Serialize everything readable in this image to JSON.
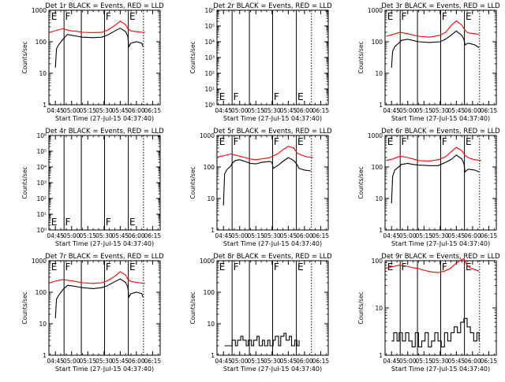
{
  "page": {
    "background": "#ffffff"
  },
  "colors": {
    "events": "#000000",
    "lld": "#ff0000",
    "axis": "#000000"
  },
  "grid_layout": {
    "rows": 3,
    "cols": 3
  },
  "x_axis": {
    "ticks": [
      "04:45",
      "05:00",
      "05:15",
      "05:30",
      "05:45",
      "06:00",
      "06:15"
    ],
    "tick_minutes": [
      285,
      300,
      315,
      330,
      345,
      360,
      375
    ],
    "xlim_minutes": [
      279,
      382
    ],
    "label": "Start Time (27-Jul-15 04:37:40)"
  },
  "y_axis": {
    "label": "Counts/sec"
  },
  "common": {
    "solid_vlines_minutes": [
      293,
      309,
      330.5,
      352.5
    ],
    "dotted_vlines_minutes": [
      366.5
    ],
    "letters": [
      {
        "text": "E",
        "at_minutes": 281,
        "row": "top"
      },
      {
        "text": "F",
        "at_minutes": 294,
        "row": "top"
      },
      {
        "text": "F",
        "at_minutes": 331.5,
        "row": "top"
      },
      {
        "text": "E",
        "at_minutes": 353.5,
        "row": "top"
      }
    ]
  },
  "chart_data": [
    {
      "type": "line",
      "title": "Det 1r BLACK = Events, RED = LLD",
      "yscale": "log",
      "ylim": [
        1,
        1000
      ],
      "yticks": [
        "1",
        "10",
        "100",
        "1000"
      ],
      "xlabel": "Start Time (27-Jul-15 04:37:40)",
      "ylabel": "Counts/sec",
      "series": [
        {
          "name": "RED = LLD",
          "color": "#ff0000",
          "x": [
            280,
            286,
            292,
            295,
            300,
            305,
            310,
            320,
            328,
            333,
            340,
            345,
            350,
            352,
            355,
            360,
            365,
            368
          ],
          "y": [
            200,
            230,
            260,
            240,
            220,
            215,
            200,
            195,
            200,
            230,
            330,
            450,
            350,
            260,
            220,
            210,
            200,
            200
          ]
        },
        {
          "name": "BLACK = Events",
          "color": "#000000",
          "x": [
            285,
            286,
            288,
            292,
            293,
            296,
            300,
            305,
            310,
            320,
            328,
            333,
            340,
            345,
            350,
            352,
            353,
            355,
            360,
            365,
            366
          ],
          "y": [
            15,
            60,
            80,
            120,
            130,
            170,
            160,
            150,
            140,
            135,
            140,
            160,
            220,
            270,
            210,
            150,
            70,
            90,
            100,
            90,
            70
          ]
        }
      ]
    },
    {
      "type": "line",
      "title": "Det 2r BLACK = Events, RED = LLD",
      "yscale": "log",
      "ylim": [
        1,
        1000000
      ],
      "yticks": [
        "10⁰",
        "10¹",
        "10²",
        "10³",
        "10⁴",
        "10⁵",
        "10⁶"
      ],
      "xlabel": "Start Time (27-Jul-15 04:37:40)",
      "ylabel": "Counts/sec",
      "series": [],
      "letters_row": "bottom"
    },
    {
      "type": "line",
      "title": "Det 3r BLACK = Events, RED = LLD",
      "yscale": "log",
      "ylim": [
        1,
        1000
      ],
      "yticks": [
        "1",
        "10",
        "100",
        "1000"
      ],
      "xlabel": "Start Time (27-Jul-15 04:37:40)",
      "ylabel": "Counts/sec",
      "series": [
        {
          "name": "RED = LLD",
          "color": "#ff0000",
          "x": [
            280,
            286,
            293,
            300,
            310,
            320,
            330,
            335,
            340,
            345,
            350,
            353,
            356,
            362,
            366
          ],
          "y": [
            150,
            170,
            200,
            180,
            150,
            140,
            160,
            200,
            320,
            460,
            340,
            230,
            190,
            180,
            170
          ]
        },
        {
          "name": "BLACK = Events",
          "color": "#000000",
          "x": [
            285,
            286,
            288,
            293,
            294,
            300,
            310,
            320,
            330,
            335,
            340,
            345,
            350,
            352,
            353,
            356,
            362,
            366
          ],
          "y": [
            15,
            50,
            70,
            100,
            110,
            120,
            100,
            95,
            100,
            120,
            160,
            220,
            160,
            120,
            80,
            90,
            80,
            65
          ]
        }
      ]
    },
    {
      "type": "line",
      "title": "Det 4r BLACK = Events, RED = LLD",
      "yscale": "log",
      "ylim": [
        1,
        1000000
      ],
      "yticks": [
        "10⁰",
        "10¹",
        "10²",
        "10³",
        "10⁴",
        "10⁵",
        "10⁶"
      ],
      "xlabel": "Start Time (27-Jul-15 04:37:40)",
      "ylabel": "Counts/sec",
      "series": [],
      "letters_row": "bottom"
    },
    {
      "type": "line",
      "title": "Det 5r BLACK = Events, RED = LLD",
      "yscale": "log",
      "ylim": [
        1,
        1000
      ],
      "yticks": [
        "1",
        "10",
        "100",
        "1000"
      ],
      "xlabel": "Start Time (27-Jul-15 04:37:40)",
      "ylabel": "Counts/sec",
      "series": [
        {
          "name": "RED = LLD",
          "color": "#ff0000",
          "x": [
            280,
            286,
            292,
            300,
            305,
            310,
            315,
            320,
            328,
            335,
            340,
            345,
            350,
            353,
            357,
            362,
            368
          ],
          "y": [
            210,
            230,
            260,
            220,
            200,
            180,
            170,
            180,
            200,
            260,
            350,
            450,
            400,
            280,
            240,
            210,
            200
          ]
        },
        {
          "name": "BLACK = Events",
          "color": "#000000",
          "x": [
            285,
            286,
            288,
            292,
            293,
            296,
            300,
            305,
            310,
            315,
            320,
            328,
            330,
            331,
            335,
            340,
            345,
            350,
            353,
            355,
            360,
            366
          ],
          "y": [
            6,
            60,
            80,
            110,
            130,
            160,
            170,
            150,
            130,
            125,
            140,
            150,
            140,
            90,
            110,
            150,
            200,
            160,
            120,
            90,
            80,
            75
          ]
        }
      ]
    },
    {
      "type": "line",
      "title": "Det 6r BLACK = Events, RED = LLD",
      "yscale": "log",
      "ylim": [
        1,
        1000
      ],
      "yticks": [
        "1",
        "10",
        "100",
        "1000"
      ],
      "xlabel": "Start Time (27-Jul-15 04:37:40)",
      "ylabel": "Counts/sec",
      "series": [
        {
          "name": "RED = LLD",
          "color": "#ff0000",
          "x": [
            280,
            286,
            293,
            300,
            305,
            310,
            320,
            328,
            335,
            340,
            345,
            350,
            353,
            357,
            362,
            368
          ],
          "y": [
            160,
            180,
            220,
            200,
            180,
            160,
            155,
            170,
            210,
            300,
            420,
            330,
            230,
            190,
            170,
            160
          ]
        },
        {
          "name": "BLACK = Events",
          "color": "#000000",
          "x": [
            285,
            286,
            288,
            293,
            294,
            300,
            305,
            310,
            320,
            328,
            333,
            340,
            345,
            350,
            352,
            353,
            356,
            362,
            366
          ],
          "y": [
            7,
            50,
            80,
            110,
            120,
            130,
            120,
            115,
            110,
            110,
            130,
            170,
            240,
            180,
            130,
            70,
            85,
            80,
            70
          ]
        }
      ]
    },
    {
      "type": "line",
      "title": "Det 7r BLACK = Events, RED = LLD",
      "yscale": "log",
      "ylim": [
        1,
        1000
      ],
      "yticks": [
        "1",
        "10",
        "100",
        "1000"
      ],
      "xlabel": "Start Time (27-Jul-15 04:37:40)",
      "ylabel": "Counts/sec",
      "series": [
        {
          "name": "RED = LLD",
          "color": "#ff0000",
          "x": [
            280,
            286,
            292,
            300,
            305,
            310,
            320,
            328,
            333,
            340,
            345,
            350,
            352,
            355,
            360,
            365,
            368
          ],
          "y": [
            200,
            230,
            250,
            230,
            215,
            200,
            190,
            200,
            230,
            320,
            450,
            350,
            260,
            220,
            205,
            195,
            190
          ]
        },
        {
          "name": "BLACK = Events",
          "color": "#000000",
          "x": [
            285,
            286,
            288,
            292,
            293,
            296,
            300,
            305,
            310,
            320,
            328,
            333,
            340,
            345,
            350,
            352,
            353,
            355,
            360,
            365,
            366
          ],
          "y": [
            15,
            60,
            80,
            120,
            130,
            165,
            160,
            150,
            140,
            130,
            140,
            160,
            215,
            265,
            205,
            150,
            70,
            90,
            100,
            90,
            70
          ]
        }
      ]
    },
    {
      "type": "line",
      "title": "Det 8r BLACK = Events, RED = LLD",
      "yscale": "log",
      "ylim": [
        1,
        1000
      ],
      "yticks": [
        "1",
        "10",
        "100",
        "1000"
      ],
      "xlabel": "Start Time (27-Jul-15 04:37:40)",
      "ylabel": "Counts/sec",
      "series": [
        {
          "name": "BLACK = Events",
          "color": "#000000",
          "x": [
            286,
            288,
            290,
            293,
            296,
            298,
            301,
            303,
            306,
            308,
            311,
            313,
            316,
            318,
            321,
            323,
            326,
            328,
            331,
            333,
            336,
            338,
            341,
            343,
            346,
            348,
            351,
            353,
            355
          ],
          "y": [
            2,
            2,
            2,
            3,
            2,
            3,
            4,
            3,
            2,
            3,
            2,
            3,
            4,
            2,
            3,
            2,
            3,
            2,
            3,
            4,
            2,
            4,
            5,
            3,
            4,
            2,
            3,
            2,
            3
          ]
        }
      ]
    },
    {
      "type": "line",
      "title": "Det 9r BLACK = Events, RED = LLD",
      "yscale": "log",
      "ylim": [
        1,
        100
      ],
      "yticks": [
        "1",
        "10",
        "100"
      ],
      "xlabel": "Start Time (27-Jul-15 04:37:40)",
      "ylabel": "Counts/sec",
      "series": [
        {
          "name": "RED = LLD",
          "color": "#ff0000",
          "x": [
            280,
            286,
            292,
            298,
            304,
            310,
            316,
            322,
            328,
            334,
            340,
            344,
            348,
            352,
            355,
            358,
            362,
            366
          ],
          "y": [
            70,
            75,
            80,
            78,
            72,
            68,
            62,
            58,
            56,
            60,
            70,
            85,
            100,
            110,
            80,
            70,
            65,
            60
          ]
        },
        {
          "name": "BLACK = Events",
          "color": "#000000",
          "x": [
            285,
            287,
            290,
            292,
            295,
            298,
            301,
            304,
            307,
            310,
            313,
            316,
            319,
            322,
            325,
            328,
            331,
            334,
            337,
            340,
            343,
            346,
            349,
            352,
            355,
            358,
            361,
            364,
            366
          ],
          "y": [
            2,
            3,
            2,
            3,
            2,
            3,
            2,
            1.5,
            3,
            1.5,
            2,
            3,
            1.5,
            2,
            3,
            2,
            1.5,
            3,
            2,
            3,
            4,
            3,
            5,
            6,
            4,
            3,
            2,
            3,
            2
          ]
        }
      ]
    }
  ]
}
